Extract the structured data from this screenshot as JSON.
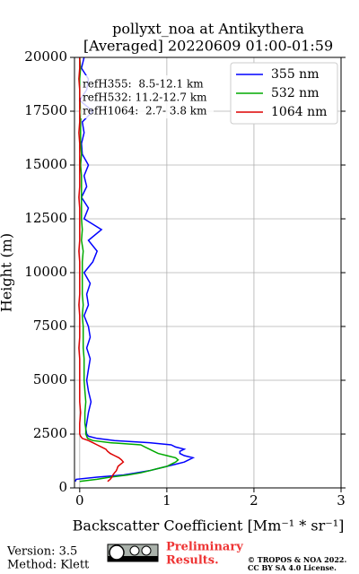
{
  "chart_data": {
    "type": "line",
    "title": "pollyxt_noa at Antikythera",
    "subtitle": "[Averaged] 20220609 01:00-01:59",
    "xlabel": "Backscatter Coefficient [Mm⁻¹ * sr⁻¹]",
    "ylabel": "Height (m)",
    "annotations": [
      "refH355:  8.5-12.1 km",
      "refH532: 11.2-12.7 km",
      "refH1064:  2.7- 3.8 km"
    ],
    "xlim": [
      -0.06,
      3
    ],
    "xticks": [
      0,
      1,
      2,
      3
    ],
    "ylim": [
      0,
      20000
    ],
    "yticks": [
      0,
      2500,
      5000,
      7500,
      10000,
      12500,
      15000,
      17500,
      20000
    ],
    "grid": true,
    "legend": "upper right",
    "y": [
      300,
      400,
      500,
      600,
      700,
      800,
      900,
      1000,
      1100,
      1200,
      1300,
      1400,
      1500,
      1600,
      1700,
      1800,
      1900,
      2000,
      2100,
      2200,
      2300,
      2400,
      2500,
      2750,
      3000,
      3500,
      4000,
      4500,
      5000,
      5500,
      6000,
      6500,
      7000,
      7500,
      8000,
      8500,
      9000,
      9500,
      10000,
      10500,
      11000,
      11500,
      12000,
      12500,
      13000,
      13500,
      14000,
      14500,
      15000,
      15500,
      16000,
      16500,
      17000,
      17500,
      18000,
      18500,
      19000,
      19500,
      20000
    ],
    "series": [
      {
        "name": "355 nm",
        "color": "#0000ff",
        "values": [
          -0.05,
          -0.04,
          0.2,
          0.5,
          0.65,
          0.8,
          0.9,
          1.0,
          1.1,
          1.2,
          1.25,
          1.3,
          1.2,
          1.15,
          1.15,
          1.2,
          1.1,
          1.05,
          0.8,
          0.4,
          0.2,
          0.1,
          0.08,
          0.07,
          0.08,
          0.1,
          0.13,
          0.1,
          0.08,
          0.1,
          0.12,
          0.08,
          0.12,
          0.1,
          0.05,
          0.1,
          0.08,
          0.12,
          0.05,
          0.15,
          0.2,
          0.1,
          0.25,
          0.05,
          0.1,
          0.02,
          0.08,
          0.05,
          0.1,
          0.03,
          0.02,
          0.05,
          0.03,
          0.15,
          0.0,
          0.08,
          0.1,
          0.02,
          0.05
        ]
      },
      {
        "name": "532 nm",
        "color": "#00aa00",
        "values": [
          0.0,
          0.2,
          0.35,
          0.55,
          0.7,
          0.8,
          0.9,
          1.0,
          1.05,
          1.1,
          1.13,
          1.1,
          1.0,
          0.9,
          0.85,
          0.8,
          0.75,
          0.7,
          0.35,
          0.15,
          0.09,
          0.08,
          0.07,
          0.07,
          0.06,
          0.06,
          0.07,
          0.06,
          0.05,
          0.05,
          0.05,
          0.04,
          0.04,
          0.04,
          0.03,
          0.04,
          0.03,
          0.03,
          0.03,
          0.03,
          0.04,
          0.02,
          0.03,
          0.02,
          0.02,
          0.02,
          0.02,
          0.02,
          0.01,
          0.02,
          0.01,
          0.01,
          0.01,
          0.02,
          0.0,
          0.0,
          0.0,
          0.01,
          0.0
        ]
      },
      {
        "name": "1064 nm",
        "color": "#dd0000",
        "values": [
          0.32,
          0.35,
          0.37,
          0.38,
          0.4,
          0.42,
          0.43,
          0.44,
          0.47,
          0.5,
          0.48,
          0.45,
          0.4,
          0.35,
          0.32,
          0.3,
          0.25,
          0.2,
          0.15,
          0.1,
          0.03,
          0.01,
          0.0,
          0.0,
          0.0,
          0.01,
          0.0,
          0.0,
          0.0,
          0.0,
          0.0,
          -0.01,
          0.0,
          0.0,
          0.0,
          -0.01,
          0.0,
          0.0,
          0.0,
          0.0,
          -0.01,
          0.0,
          0.0,
          0.0,
          0.0,
          -0.01,
          0.0,
          0.0,
          0.0,
          0.0,
          0.0,
          -0.01,
          0.0,
          0.0,
          0.0,
          0.0,
          -0.01,
          0.0,
          0.0
        ]
      }
    ]
  },
  "footer": {
    "version": "Version: 3.5",
    "method": "Method: Klett",
    "preliminary": [
      "Preliminary",
      "Results."
    ],
    "copyright": [
      "© TROPOS & NOA 2022.",
      "CC BY SA 4.0 License."
    ]
  }
}
